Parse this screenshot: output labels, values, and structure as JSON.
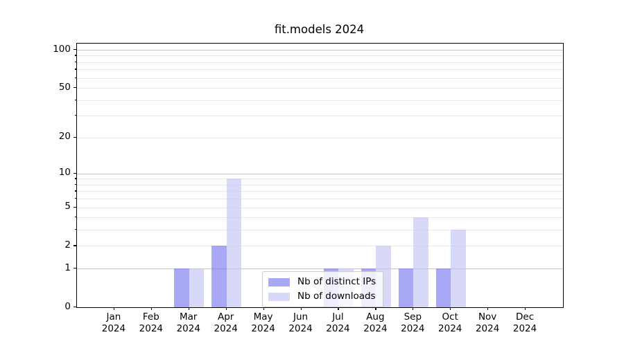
{
  "title": "fit.models 2024",
  "chart_data": {
    "type": "bar",
    "title": "fit.models 2024",
    "categories": [
      "Jan",
      "Feb",
      "Mar",
      "Apr",
      "May",
      "Jun",
      "Jul",
      "Aug",
      "Sep",
      "Oct",
      "Nov",
      "Dec"
    ],
    "x_year_suffix": "2024",
    "series": [
      {
        "name": "Nb of distinct IPs",
        "color": "rgba(110,110,240,0.6)",
        "values": [
          0,
          0,
          1,
          2,
          0,
          0,
          1,
          1,
          1,
          1,
          0,
          0
        ]
      },
      {
        "name": "Nb of downloads",
        "color": "rgba(190,190,245,0.6)",
        "values": [
          0,
          0,
          1,
          9,
          0,
          0,
          1,
          2,
          4,
          3,
          0,
          0
        ]
      }
    ],
    "y_axis": {
      "scale": "log1p",
      "top_value": 112,
      "labeled_ticks": [
        0,
        1,
        2,
        5,
        10,
        20,
        50,
        100
      ],
      "major_grid_ticks": [
        1,
        10,
        100
      ],
      "minor_grid_ticks": [
        2,
        3,
        4,
        5,
        6,
        7,
        8,
        9,
        20,
        30,
        40,
        50,
        60,
        70,
        80,
        90
      ]
    },
    "xlabel": "",
    "ylabel": "",
    "grid": true,
    "legend_position": "lower center"
  },
  "colors": {
    "major_grid": "#c6c6c6",
    "minor_grid": "#e8e8e8",
    "axis": "#000000",
    "background": "#ffffff"
  }
}
